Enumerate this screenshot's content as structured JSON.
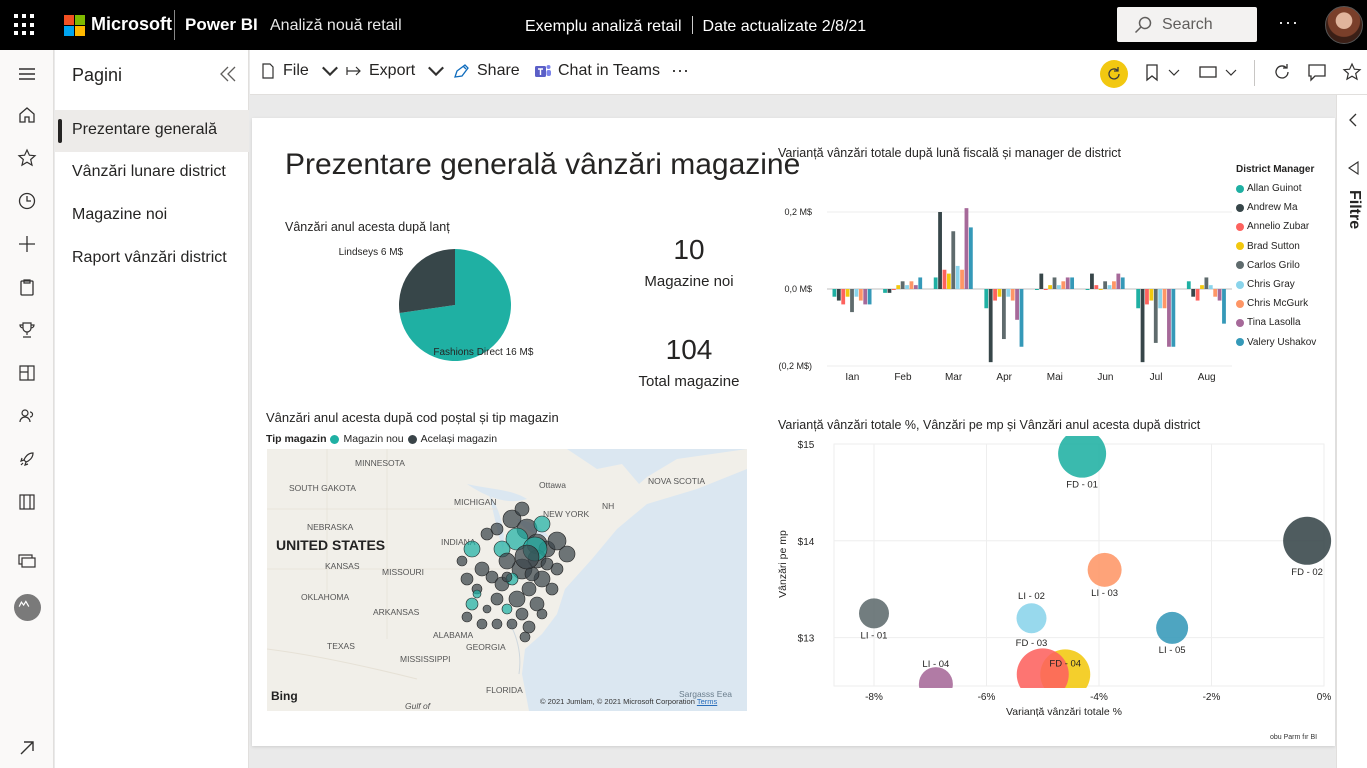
{
  "topbar": {
    "brand": "Microsoft",
    "product": "Power BI",
    "workspace": "Analiză nouă retail",
    "report_title": "Exemplu analiză retail",
    "updated": "Date actualizate 2/8/21",
    "search_label": "Search",
    "more": "···"
  },
  "pages": {
    "title": "Pagini",
    "items": [
      {
        "label": "Prezentare generală"
      },
      {
        "label": "Vânzări lunare district"
      },
      {
        "label": "Magazine noi"
      },
      {
        "label": "Raport vânzări district"
      }
    ]
  },
  "actionbar": {
    "file": "File",
    "export": "Export",
    "share": "Share",
    "teams": "Chat in Teams",
    "more": "···"
  },
  "filters": {
    "label": "Filtre"
  },
  "report": {
    "title": "Prezentare generală vânzări magazine",
    "kpis": [
      {
        "value": "10",
        "label": "Magazine noi"
      },
      {
        "value": "104",
        "label": "Total magazine"
      }
    ],
    "pie_title": "Vânzări anul acesta după lanț",
    "map_title": "Vânzări anul acesta după cod poștal și tip magazin",
    "map_legend": {
      "title": "Tip magazin",
      "items": [
        {
          "label": "Magazin nou",
          "color": "#1fb0a3"
        },
        {
          "label": "Același magazin",
          "color": "#3a4449"
        }
      ]
    },
    "map_labels": [
      "MINNESOTA",
      "SOUTH GAKOTA",
      "MICHIGAN",
      "NEBRASKA",
      "INDIANA",
      "KANSAS",
      "MISSOURI",
      "OKLAHOMA",
      "ARKANSAS",
      "ALABAMA",
      "GEORGIA",
      "TEXAS",
      "MISSISSIPPI",
      "FLORIDA",
      "Gulf of",
      "Sargasss Eea",
      "Ottawa",
      "NOVA SCOTIA",
      "NEW YORK",
      "NH"
    ],
    "map_country": "UNITED STATES",
    "map_bing": "Bing",
    "map_copyright": "© 2021 Jumlam, © 2021 Microsoft Corporation",
    "map_terms": "Terms",
    "bar_title": "Varianță vânzări totale după lună fiscală și manager de district",
    "scatter_title": "Varianță vânzări totale %, Vânzări pe mp și Vânzări anul acesta după district",
    "corner_note": "obu Parm fır BI"
  },
  "chart_data": [
    {
      "type": "pie",
      "title": "Vânzări anul acesta după lanț",
      "slices": [
        {
          "label": "Fashions Direct 16 M$",
          "value": 16,
          "color": "#1fb0a3"
        },
        {
          "label": "Lindseys 6 M$",
          "value": 6,
          "color": "#374649"
        }
      ]
    },
    {
      "type": "bar",
      "title": "Varianță vânzări totale după lună fiscală și manager de district",
      "categories": [
        "Ian",
        "Feb",
        "Mar",
        "Apr",
        "Mai",
        "Jun",
        "Jul",
        "Aug"
      ],
      "yticks": [
        "0,2 M$",
        "0,0 M$",
        "(0,2 M$)"
      ],
      "ylim": [
        -0.2,
        0.2
      ],
      "legend_title": "District Manager",
      "series": [
        {
          "name": "Allan Guinot",
          "color": "#1fb0a3",
          "values": [
            -0.02,
            -0.01,
            0.03,
            -0.05,
            0.0,
            0.0,
            -0.05,
            0.02
          ]
        },
        {
          "name": "Andrew Ma",
          "color": "#374649",
          "values": [
            -0.03,
            -0.01,
            0.2,
            -0.19,
            0.04,
            0.04,
            -0.19,
            -0.02
          ]
        },
        {
          "name": "Annelio Zubar",
          "color": "#fd625e",
          "values": [
            -0.04,
            0.0,
            0.05,
            -0.03,
            0.0,
            0.01,
            -0.04,
            -0.03
          ]
        },
        {
          "name": "Brad Sutton",
          "color": "#f2c80f",
          "values": [
            -0.02,
            0.01,
            0.04,
            -0.02,
            0.01,
            0.0,
            -0.03,
            0.01
          ]
        },
        {
          "name": "Carlos Grilo",
          "color": "#5f6b6d",
          "values": [
            -0.06,
            0.02,
            0.15,
            -0.13,
            0.03,
            0.02,
            -0.14,
            0.03
          ]
        },
        {
          "name": "Chris Gray",
          "color": "#8ad4eb",
          "values": [
            -0.02,
            0.01,
            0.06,
            -0.02,
            0.01,
            0.01,
            -0.05,
            0.01
          ]
        },
        {
          "name": "Chris McGurk",
          "color": "#fe9666",
          "values": [
            -0.03,
            0.02,
            0.05,
            -0.03,
            0.02,
            0.02,
            -0.05,
            -0.02
          ]
        },
        {
          "name": "Tina Lasolla",
          "color": "#a66999",
          "values": [
            -0.04,
            0.01,
            0.21,
            -0.08,
            0.03,
            0.04,
            -0.15,
            -0.03
          ]
        },
        {
          "name": "Valery Ushakov",
          "color": "#3599b8",
          "values": [
            -0.04,
            0.03,
            0.16,
            -0.15,
            0.03,
            0.03,
            -0.15,
            -0.09
          ]
        }
      ]
    },
    {
      "type": "scatter",
      "title": "Varianță vânzări totale %, Vânzări pe mp și Vânzări anul acesta după district",
      "xlabel": "Varianță vânzări totale %",
      "ylabel": "Vânzări pe mp",
      "xticks": [
        "-8%",
        "-6%",
        "-4%",
        "-2%",
        "0%"
      ],
      "yticks": [
        "$15",
        "$14",
        "$13"
      ],
      "xlim": [
        -8,
        0
      ],
      "ylim": [
        12.5,
        15
      ],
      "points": [
        {
          "label": "FD - 01",
          "x": -4.3,
          "y": 14.9,
          "size": 24,
          "color": "#1fb0a3"
        },
        {
          "label": "FD - 02",
          "x": -0.3,
          "y": 14.0,
          "size": 24,
          "color": "#374649"
        },
        {
          "label": "LI - 03",
          "x": -3.9,
          "y": 13.7,
          "size": 17,
          "color": "#fe9666"
        },
        {
          "label": "LI - 01",
          "x": -8.0,
          "y": 13.25,
          "size": 15,
          "color": "#5f6b6d"
        },
        {
          "label": "LI - 02",
          "x": -5.2,
          "y": 13.2,
          "size": 15,
          "color": "#8ad4eb"
        },
        {
          "label": "FD - 03",
          "x": -5.2,
          "y": 13.05,
          "size": 0,
          "color": "#8ad4eb"
        },
        {
          "label": "LI - 05",
          "x": -2.7,
          "y": 13.1,
          "size": 16,
          "color": "#3599b8"
        },
        {
          "label": "FD - 04",
          "x": -4.6,
          "y": 12.62,
          "size": 25,
          "color": "#f2c80f"
        },
        {
          "label": "",
          "x": -5.0,
          "y": 12.62,
          "size": 26,
          "color": "#fd625e"
        },
        {
          "label": "LI - 04",
          "x": -6.9,
          "y": 12.52,
          "size": 17,
          "color": "#a66999"
        }
      ]
    }
  ]
}
